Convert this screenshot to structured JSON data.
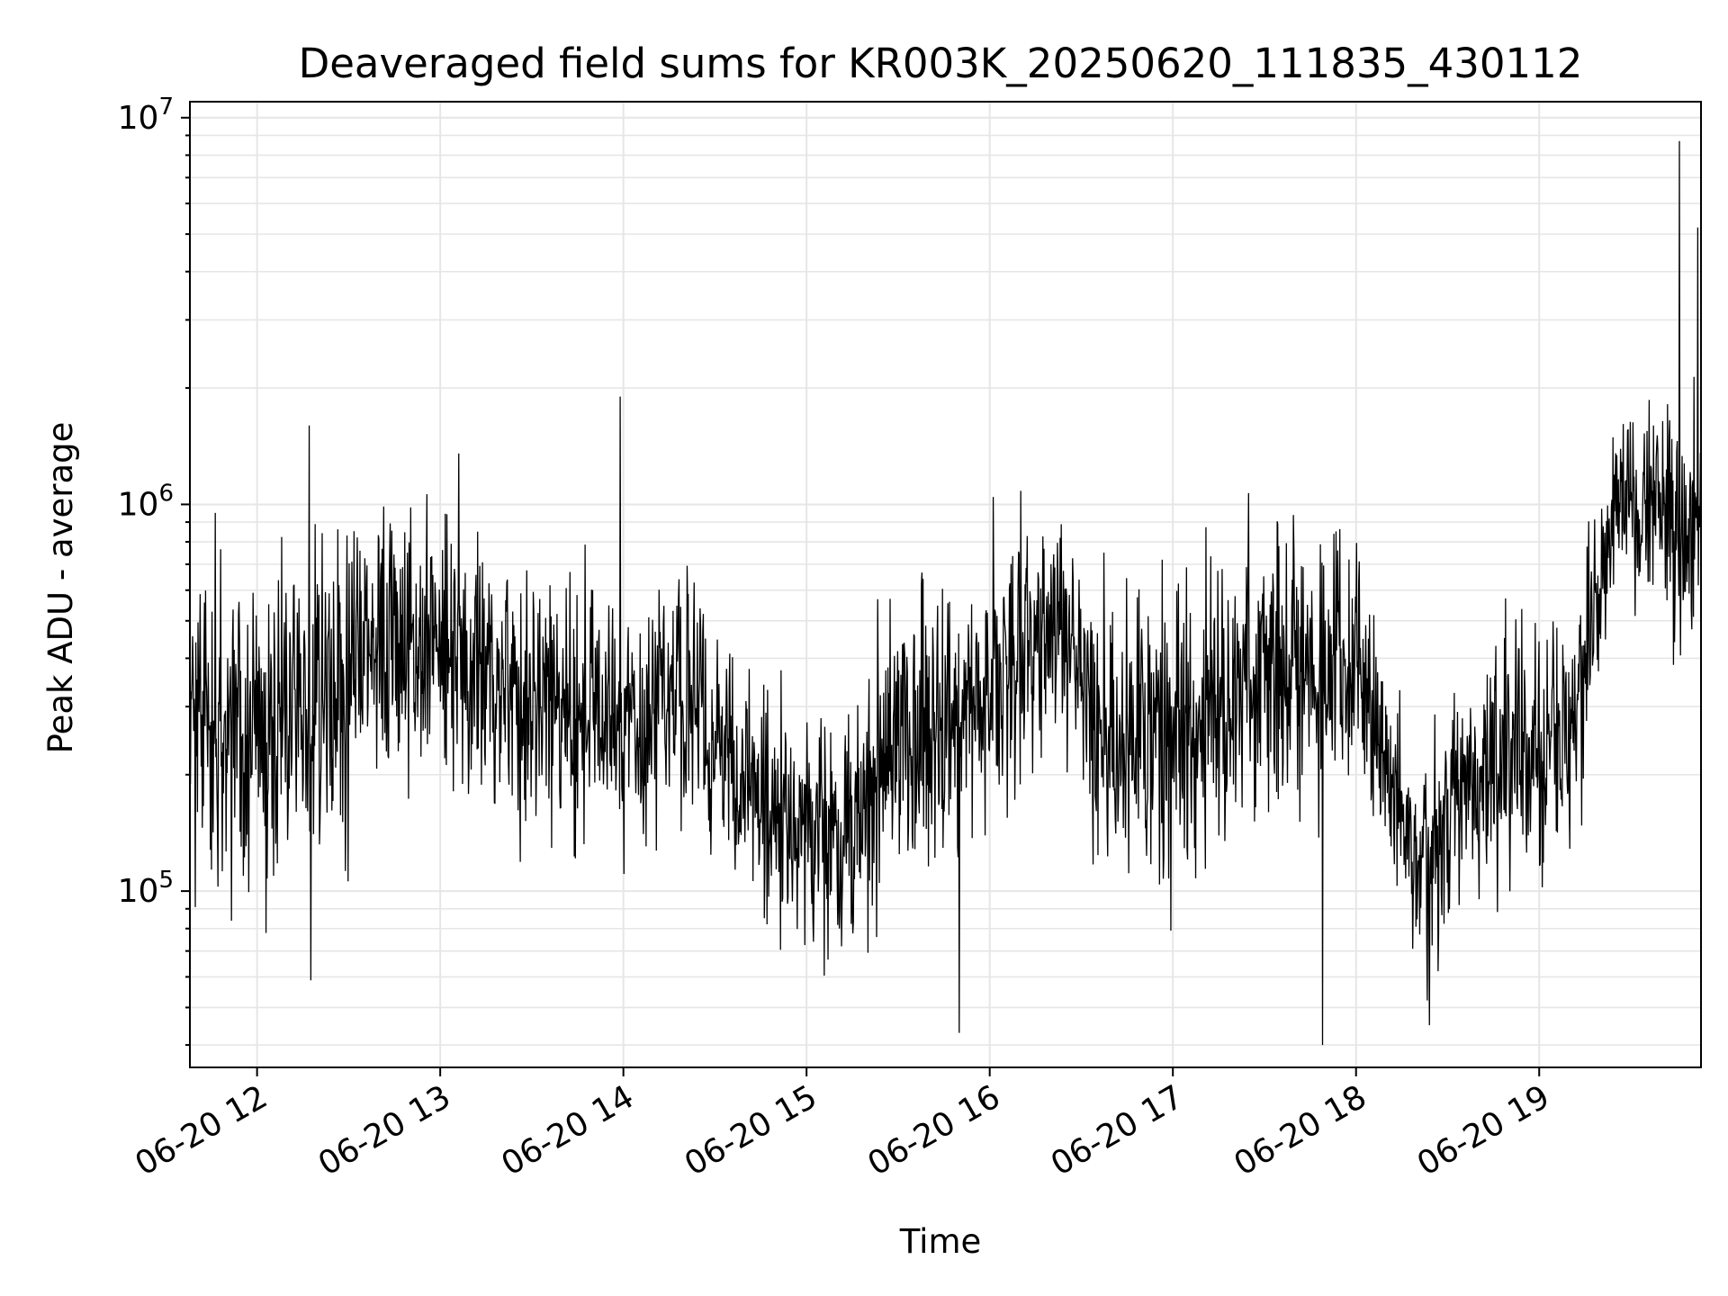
{
  "chart_data": {
    "type": "line",
    "title": "Deaveraged field sums for KR003K_20250620_111835_430112",
    "xlabel": "Time",
    "ylabel": "Peak ADU - average",
    "yscale": "log",
    "ylim": [
      35000,
      11000000
    ],
    "xlim": [
      "2025-06-20 11:38",
      "2025-06-20 19:53"
    ],
    "grid": true,
    "x_ticks": [
      {
        "t": "2025-06-20 12:00",
        "label": "06-20 12"
      },
      {
        "t": "2025-06-20 13:00",
        "label": "06-20 13"
      },
      {
        "t": "2025-06-20 14:00",
        "label": "06-20 14"
      },
      {
        "t": "2025-06-20 15:00",
        "label": "06-20 15"
      },
      {
        "t": "2025-06-20 16:00",
        "label": "06-20 16"
      },
      {
        "t": "2025-06-20 17:00",
        "label": "06-20 17"
      },
      {
        "t": "2025-06-20 18:00",
        "label": "06-20 18"
      },
      {
        "t": "2025-06-20 19:00",
        "label": "06-20 19"
      }
    ],
    "y_ticks": [
      {
        "value": 100000,
        "base": "10",
        "exp": "5"
      },
      {
        "value": 1000000,
        "base": "10",
        "exp": "6"
      },
      {
        "value": 10000000,
        "base": "10",
        "exp": "7"
      }
    ],
    "series_color": "#000000",
    "series_profile": [
      {
        "t": "2025-06-20 11:38",
        "level": 270000,
        "spread": 2.2
      },
      {
        "t": "2025-06-20 12:00",
        "level": 230000,
        "spread": 2.4
      },
      {
        "t": "2025-06-20 12:20",
        "level": 300000,
        "spread": 2.5
      },
      {
        "t": "2025-06-20 12:45",
        "level": 480000,
        "spread": 2.2
      },
      {
        "t": "2025-06-20 13:00",
        "level": 450000,
        "spread": 2.1
      },
      {
        "t": "2025-06-20 13:30",
        "level": 300000,
        "spread": 2.0
      },
      {
        "t": "2025-06-20 14:00",
        "level": 280000,
        "spread": 1.9
      },
      {
        "t": "2025-06-20 14:20",
        "level": 320000,
        "spread": 2.0
      },
      {
        "t": "2025-06-20 14:45",
        "level": 170000,
        "spread": 1.7
      },
      {
        "t": "2025-06-20 15:10",
        "level": 140000,
        "spread": 1.9
      },
      {
        "t": "2025-06-20 15:30",
        "level": 230000,
        "spread": 2.1
      },
      {
        "t": "2025-06-20 16:00",
        "level": 330000,
        "spread": 2.1
      },
      {
        "t": "2025-06-20 16:20",
        "level": 500000,
        "spread": 1.9
      },
      {
        "t": "2025-06-20 16:40",
        "level": 250000,
        "spread": 2.1
      },
      {
        "t": "2025-06-20 17:00",
        "level": 240000,
        "spread": 2.2
      },
      {
        "t": "2025-06-20 17:30",
        "level": 400000,
        "spread": 2.1
      },
      {
        "t": "2025-06-20 18:00",
        "level": 380000,
        "spread": 2.0
      },
      {
        "t": "2025-06-20 18:20",
        "level": 110000,
        "spread": 1.7
      },
      {
        "t": "2025-06-20 18:40",
        "level": 200000,
        "spread": 1.9
      },
      {
        "t": "2025-06-20 19:10",
        "level": 250000,
        "spread": 1.9
      },
      {
        "t": "2025-06-20 19:25",
        "level": 1000000,
        "spread": 1.5
      },
      {
        "t": "2025-06-20 19:53",
        "level": 900000,
        "spread": 1.9
      }
    ],
    "notable_points": [
      {
        "t": "2025-06-20 12:17",
        "y": 1600000
      },
      {
        "t": "2025-06-20 13:59",
        "y": 1900000
      },
      {
        "t": "2025-06-20 15:50",
        "y": 43000
      },
      {
        "t": "2025-06-20 17:49",
        "y": 40000
      },
      {
        "t": "2025-06-20 18:24",
        "y": 45000
      },
      {
        "t": "2025-06-20 19:46",
        "y": 8700000
      },
      {
        "t": "2025-06-20 19:52",
        "y": 5200000
      }
    ],
    "n_points": 2800
  }
}
